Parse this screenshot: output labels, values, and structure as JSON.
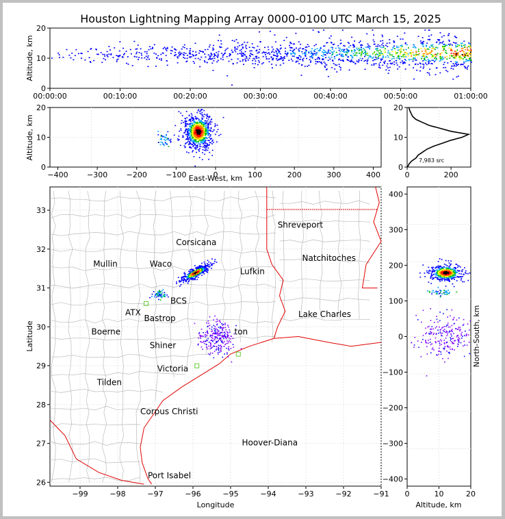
{
  "title": "Houston Lightning Mapping Array 0000-0100 UTC March 15, 2025",
  "colors": {
    "frame": "#c0c0c0",
    "county_lines": "#bbbbbb",
    "state_lines": "#e00000",
    "grid": "#e6e6e6",
    "density_scale": [
      "#0000ff",
      "#00a0ff",
      "#00c000",
      "#ffff00",
      "#ff8000",
      "#ff0000",
      "#000000"
    ]
  },
  "panels": {
    "time_altitude": {
      "ylabel": "Altitude, km",
      "yticks": [
        "0",
        "10",
        "20"
      ],
      "xticks": [
        "00:00:00",
        "00:10:00",
        "00:20:00",
        "00:30:00",
        "00:40:00",
        "00:50:00",
        "01:00:00"
      ]
    },
    "ew_altitude": {
      "ylabel": "Altitude, km",
      "xlabel": "East-West, km",
      "yticks": [
        "0",
        "10",
        "20"
      ],
      "xticks": [
        "−400",
        "−300",
        "−200",
        "−100",
        "0",
        "100",
        "200",
        "300",
        "400"
      ]
    },
    "histogram": {
      "yticks": [
        "0",
        "10",
        "20"
      ],
      "xticks": [
        "0",
        "200"
      ],
      "count_label": "7,983 src"
    },
    "map": {
      "xlabel": "Longitude",
      "ylabel": "Latitude",
      "xticks": [
        "−99",
        "−98",
        "−97",
        "−96",
        "−95",
        "−94",
        "−93",
        "−92",
        "−91"
      ],
      "yticks": [
        "26",
        "27",
        "28",
        "29",
        "30",
        "31",
        "32",
        "33"
      ]
    },
    "ns_altitude": {
      "ylabel": "North-South, km",
      "xlabel": "Altitude, km",
      "yticks": [
        "−400",
        "−300",
        "−200",
        "−100",
        "0",
        "100",
        "200",
        "300",
        "400"
      ],
      "xticks": [
        "0",
        "10",
        "20"
      ]
    }
  },
  "map_labels": [
    {
      "text": "Shreveport",
      "color": "#000000"
    },
    {
      "text": "Corsicana",
      "color": "#000000"
    },
    {
      "text": "Natchitoches",
      "color": "#000000"
    },
    {
      "text": "Mullin",
      "color": "#ff8c40"
    },
    {
      "text": "Waco",
      "color": "#000000"
    },
    {
      "text": "Lufkin",
      "color": "#000000"
    },
    {
      "text": "BCS",
      "color": "#000000"
    },
    {
      "text": "ATX",
      "color": "#ff8c40"
    },
    {
      "text": "Bastrop",
      "color": "#000000"
    },
    {
      "text": "Lake Charles",
      "color": "#000000"
    },
    {
      "text": "Boerne",
      "color": "#000000"
    },
    {
      "text": "ton",
      "color": "#ffa500"
    },
    {
      "text": "Shiner",
      "color": "#000000"
    },
    {
      "text": "Victoria",
      "color": "#000000"
    },
    {
      "text": "Tilden",
      "color": "#000000"
    },
    {
      "text": "Corpus Christi",
      "color": "#000000"
    },
    {
      "text": "Hoover-Diana",
      "color": "#0000ff"
    },
    {
      "text": "Port Isabel",
      "color": "#000000"
    }
  ],
  "chart_data": [
    {
      "type": "scatter",
      "panel": "time_altitude",
      "ylabel": "Altitude, km",
      "ylim": [
        0,
        20
      ],
      "xlim": [
        "00:00:00",
        "01:00:00"
      ],
      "series": [
        {
          "values": [
            {
              "x": "00:03:00",
              "y": 12
            },
            {
              "x": "00:10:00",
              "y": 11
            },
            {
              "x": "00:20:00",
              "y": 11
            },
            {
              "x": "00:30:00",
              "y": 11
            },
            {
              "x": "00:40:00",
              "y": 11
            },
            {
              "x": "00:50:00",
              "y": 12
            },
            {
              "x": "00:55:00",
              "y": 12
            },
            {
              "x": "00:58:00",
              "y": 12
            }
          ]
        }
      ]
    },
    {
      "type": "scatter",
      "panel": "ew_altitude",
      "xlabel": "East-West, km",
      "ylabel": "Altitude, km",
      "xlim": [
        -420,
        420
      ],
      "ylim": [
        0,
        20
      ],
      "core": {
        "x": -45,
        "y": 12
      }
    },
    {
      "type": "line",
      "panel": "histogram",
      "xlim": [
        0,
        290
      ],
      "ylim": [
        0,
        20
      ],
      "series": [
        {
          "x": [
            2,
            8,
            20,
            40,
            50,
            70,
            90,
            120,
            160,
            200,
            250,
            280,
            200,
            150,
            100,
            70,
            40,
            25,
            18,
            15,
            12,
            10,
            8
          ],
          "y": [
            0,
            1,
            2,
            3,
            4,
            5,
            6,
            7,
            8,
            9,
            10,
            11,
            12,
            13,
            14,
            15,
            16,
            17,
            18,
            18.5,
            19,
            19.5,
            20
          ]
        }
      ]
    },
    {
      "type": "scatter",
      "panel": "map",
      "xlabel": "Longitude",
      "ylabel": "Latitude",
      "xlim": [
        -99.8,
        -91
      ],
      "ylim": [
        25.9,
        33.6
      ],
      "clusters": [
        {
          "lon": -95.95,
          "lat": 31.4
        },
        {
          "lon": -96.9,
          "lat": 30.85
        },
        {
          "lon": -95.4,
          "lat": 29.75
        }
      ]
    },
    {
      "type": "scatter",
      "panel": "ns_altitude",
      "xlabel": "Altitude, km",
      "ylabel": "North-South, km",
      "xlim": [
        0,
        20
      ],
      "ylim": [
        -420,
        420
      ],
      "core": {
        "x": 12,
        "y": 180
      }
    }
  ]
}
